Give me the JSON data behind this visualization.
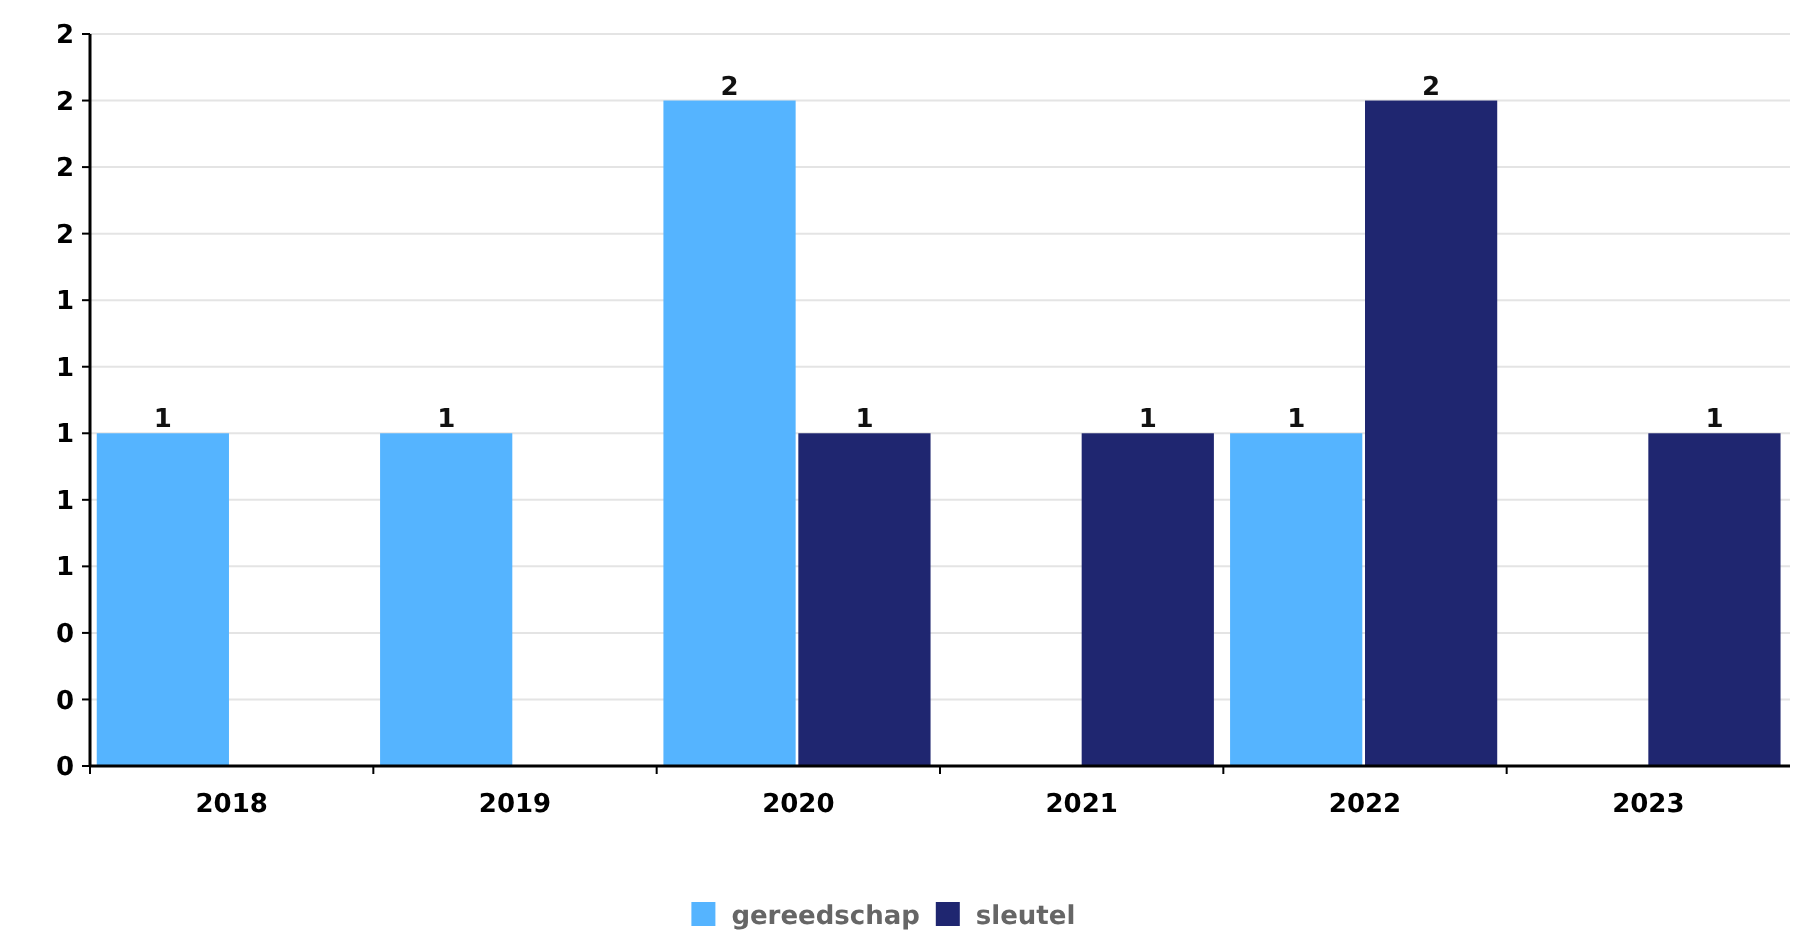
{
  "chart_data": {
    "type": "bar",
    "categories": [
      "2018",
      "2019",
      "2020",
      "2021",
      "2022",
      "2023"
    ],
    "series": [
      {
        "name": "gereedschap",
        "color": "#55b4ff",
        "values": [
          1,
          1,
          2,
          null,
          1,
          null
        ]
      },
      {
        "name": "sleutel",
        "color": "#1f2670",
        "values": [
          null,
          null,
          1,
          1,
          2,
          1
        ]
      }
    ],
    "ylim": [
      0,
      2.2
    ],
    "yticks": [
      {
        "value": 0,
        "label": "0"
      },
      {
        "value": 0.2,
        "label": "0"
      },
      {
        "value": 0.4,
        "label": "0"
      },
      {
        "value": 0.6,
        "label": "1"
      },
      {
        "value": 0.8,
        "label": "1"
      },
      {
        "value": 1,
        "label": "1"
      },
      {
        "value": 1.2,
        "label": "1"
      },
      {
        "value": 1.4,
        "label": "1"
      },
      {
        "value": 1.6,
        "label": "2"
      },
      {
        "value": 1.8,
        "label": "2"
      },
      {
        "value": 2,
        "label": "2"
      },
      {
        "value": 2.2,
        "label": "2"
      }
    ],
    "grid": "y",
    "legend": "bottom",
    "data_labels": true
  }
}
